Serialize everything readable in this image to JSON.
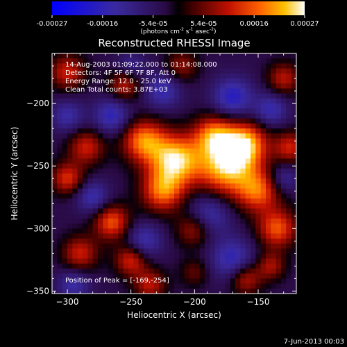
{
  "chart_data": {
    "type": "heatmap",
    "title": "Reconstructed RHESSI Image",
    "xlabel": "Heliocentric X (arcsec)",
    "ylabel": "Heliocentric Y (arcsec)",
    "xlim": [
      -312,
      -120
    ],
    "ylim": [
      -352,
      -160
    ],
    "xticks": [
      -300,
      -250,
      -200,
      -150
    ],
    "yticks": [
      -200,
      -250,
      -300,
      -350
    ],
    "colorbar": {
      "ticks": [
        "-0.00027",
        "-0.00016",
        "-5.4e-05",
        "5.4e-05",
        "0.00016",
        "0.00027"
      ],
      "unit_prefix": "(photons cm",
      "unit_exp1": "-2",
      "unit_mid": " s",
      "unit_exp2": "-1",
      "unit_end": " asec",
      "unit_exp3": "-2",
      "unit_close": ")"
    },
    "annotations": [
      "14-Aug-2003 01:09:22.000 to 01:14:08.000",
      "Detectors: 4F 5F 6F 7F 8F, Att 0",
      "Energy Range: 12.0 - 25.0 keV",
      "Clean     Total counts: 3.87E+03"
    ],
    "peak_label": "Position of Peak = [-169,-254]",
    "peak": [
      -169,
      -254
    ],
    "blobs": [
      {
        "x": -215,
        "y": -245,
        "v": 1.0,
        "s": 14
      },
      {
        "x": -175,
        "y": -250,
        "v": 1.0,
        "s": 16
      },
      {
        "x": -240,
        "y": -230,
        "v": 0.8,
        "s": 12
      },
      {
        "x": -160,
        "y": -232,
        "v": 0.85,
        "s": 12
      },
      {
        "x": -185,
        "y": -225,
        "v": 0.7,
        "s": 11
      },
      {
        "x": -225,
        "y": -270,
        "v": 0.75,
        "s": 12
      },
      {
        "x": -150,
        "y": -270,
        "v": 0.7,
        "s": 12
      },
      {
        "x": -265,
        "y": -295,
        "v": 0.7,
        "s": 10
      },
      {
        "x": -285,
        "y": -235,
        "v": 0.55,
        "s": 10
      },
      {
        "x": -300,
        "y": -260,
        "v": 0.6,
        "s": 9
      },
      {
        "x": -290,
        "y": -320,
        "v": 0.55,
        "s": 10
      },
      {
        "x": -250,
        "y": -325,
        "v": 0.6,
        "s": 9
      },
      {
        "x": -200,
        "y": -300,
        "v": 0.55,
        "s": 10
      },
      {
        "x": -135,
        "y": -300,
        "v": 0.7,
        "s": 11
      },
      {
        "x": -125,
        "y": -235,
        "v": 0.55,
        "s": 9
      },
      {
        "x": -130,
        "y": -180,
        "v": 0.5,
        "s": 9
      },
      {
        "x": -255,
        "y": -185,
        "v": 0.5,
        "s": 9
      },
      {
        "x": -210,
        "y": -170,
        "v": 0.4,
        "s": 9
      },
      {
        "x": -300,
        "y": -175,
        "v": 0.55,
        "s": 10
      },
      {
        "x": -160,
        "y": -340,
        "v": 0.55,
        "s": 9
      },
      {
        "x": -235,
        "y": -345,
        "v": 0.5,
        "s": 9
      },
      {
        "x": -200,
        "y": -335,
        "v": 0.3,
        "s": 8
      },
      {
        "x": -140,
        "y": -330,
        "v": 0.45,
        "s": 8
      },
      {
        "x": -265,
        "y": -210,
        "v": -0.5,
        "s": 10
      },
      {
        "x": -170,
        "y": -195,
        "v": -0.55,
        "s": 11
      },
      {
        "x": -225,
        "y": -190,
        "v": -0.45,
        "s": 10
      },
      {
        "x": -190,
        "y": -290,
        "v": -0.5,
        "s": 12
      },
      {
        "x": -240,
        "y": -310,
        "v": -0.45,
        "s": 10
      },
      {
        "x": -280,
        "y": -275,
        "v": -0.45,
        "s": 9
      },
      {
        "x": -170,
        "y": -325,
        "v": -0.5,
        "s": 12
      },
      {
        "x": -295,
        "y": -345,
        "v": -0.4,
        "s": 9
      },
      {
        "x": -140,
        "y": -205,
        "v": -0.45,
        "s": 9
      },
      {
        "x": -300,
        "y": -210,
        "v": -0.4,
        "s": 9
      },
      {
        "x": -130,
        "y": -260,
        "v": -0.35,
        "s": 8
      },
      {
        "x": -250,
        "y": -170,
        "v": -0.3,
        "s": 8
      }
    ]
  },
  "footer": {
    "date": "7-Jun-2013 00:03"
  }
}
